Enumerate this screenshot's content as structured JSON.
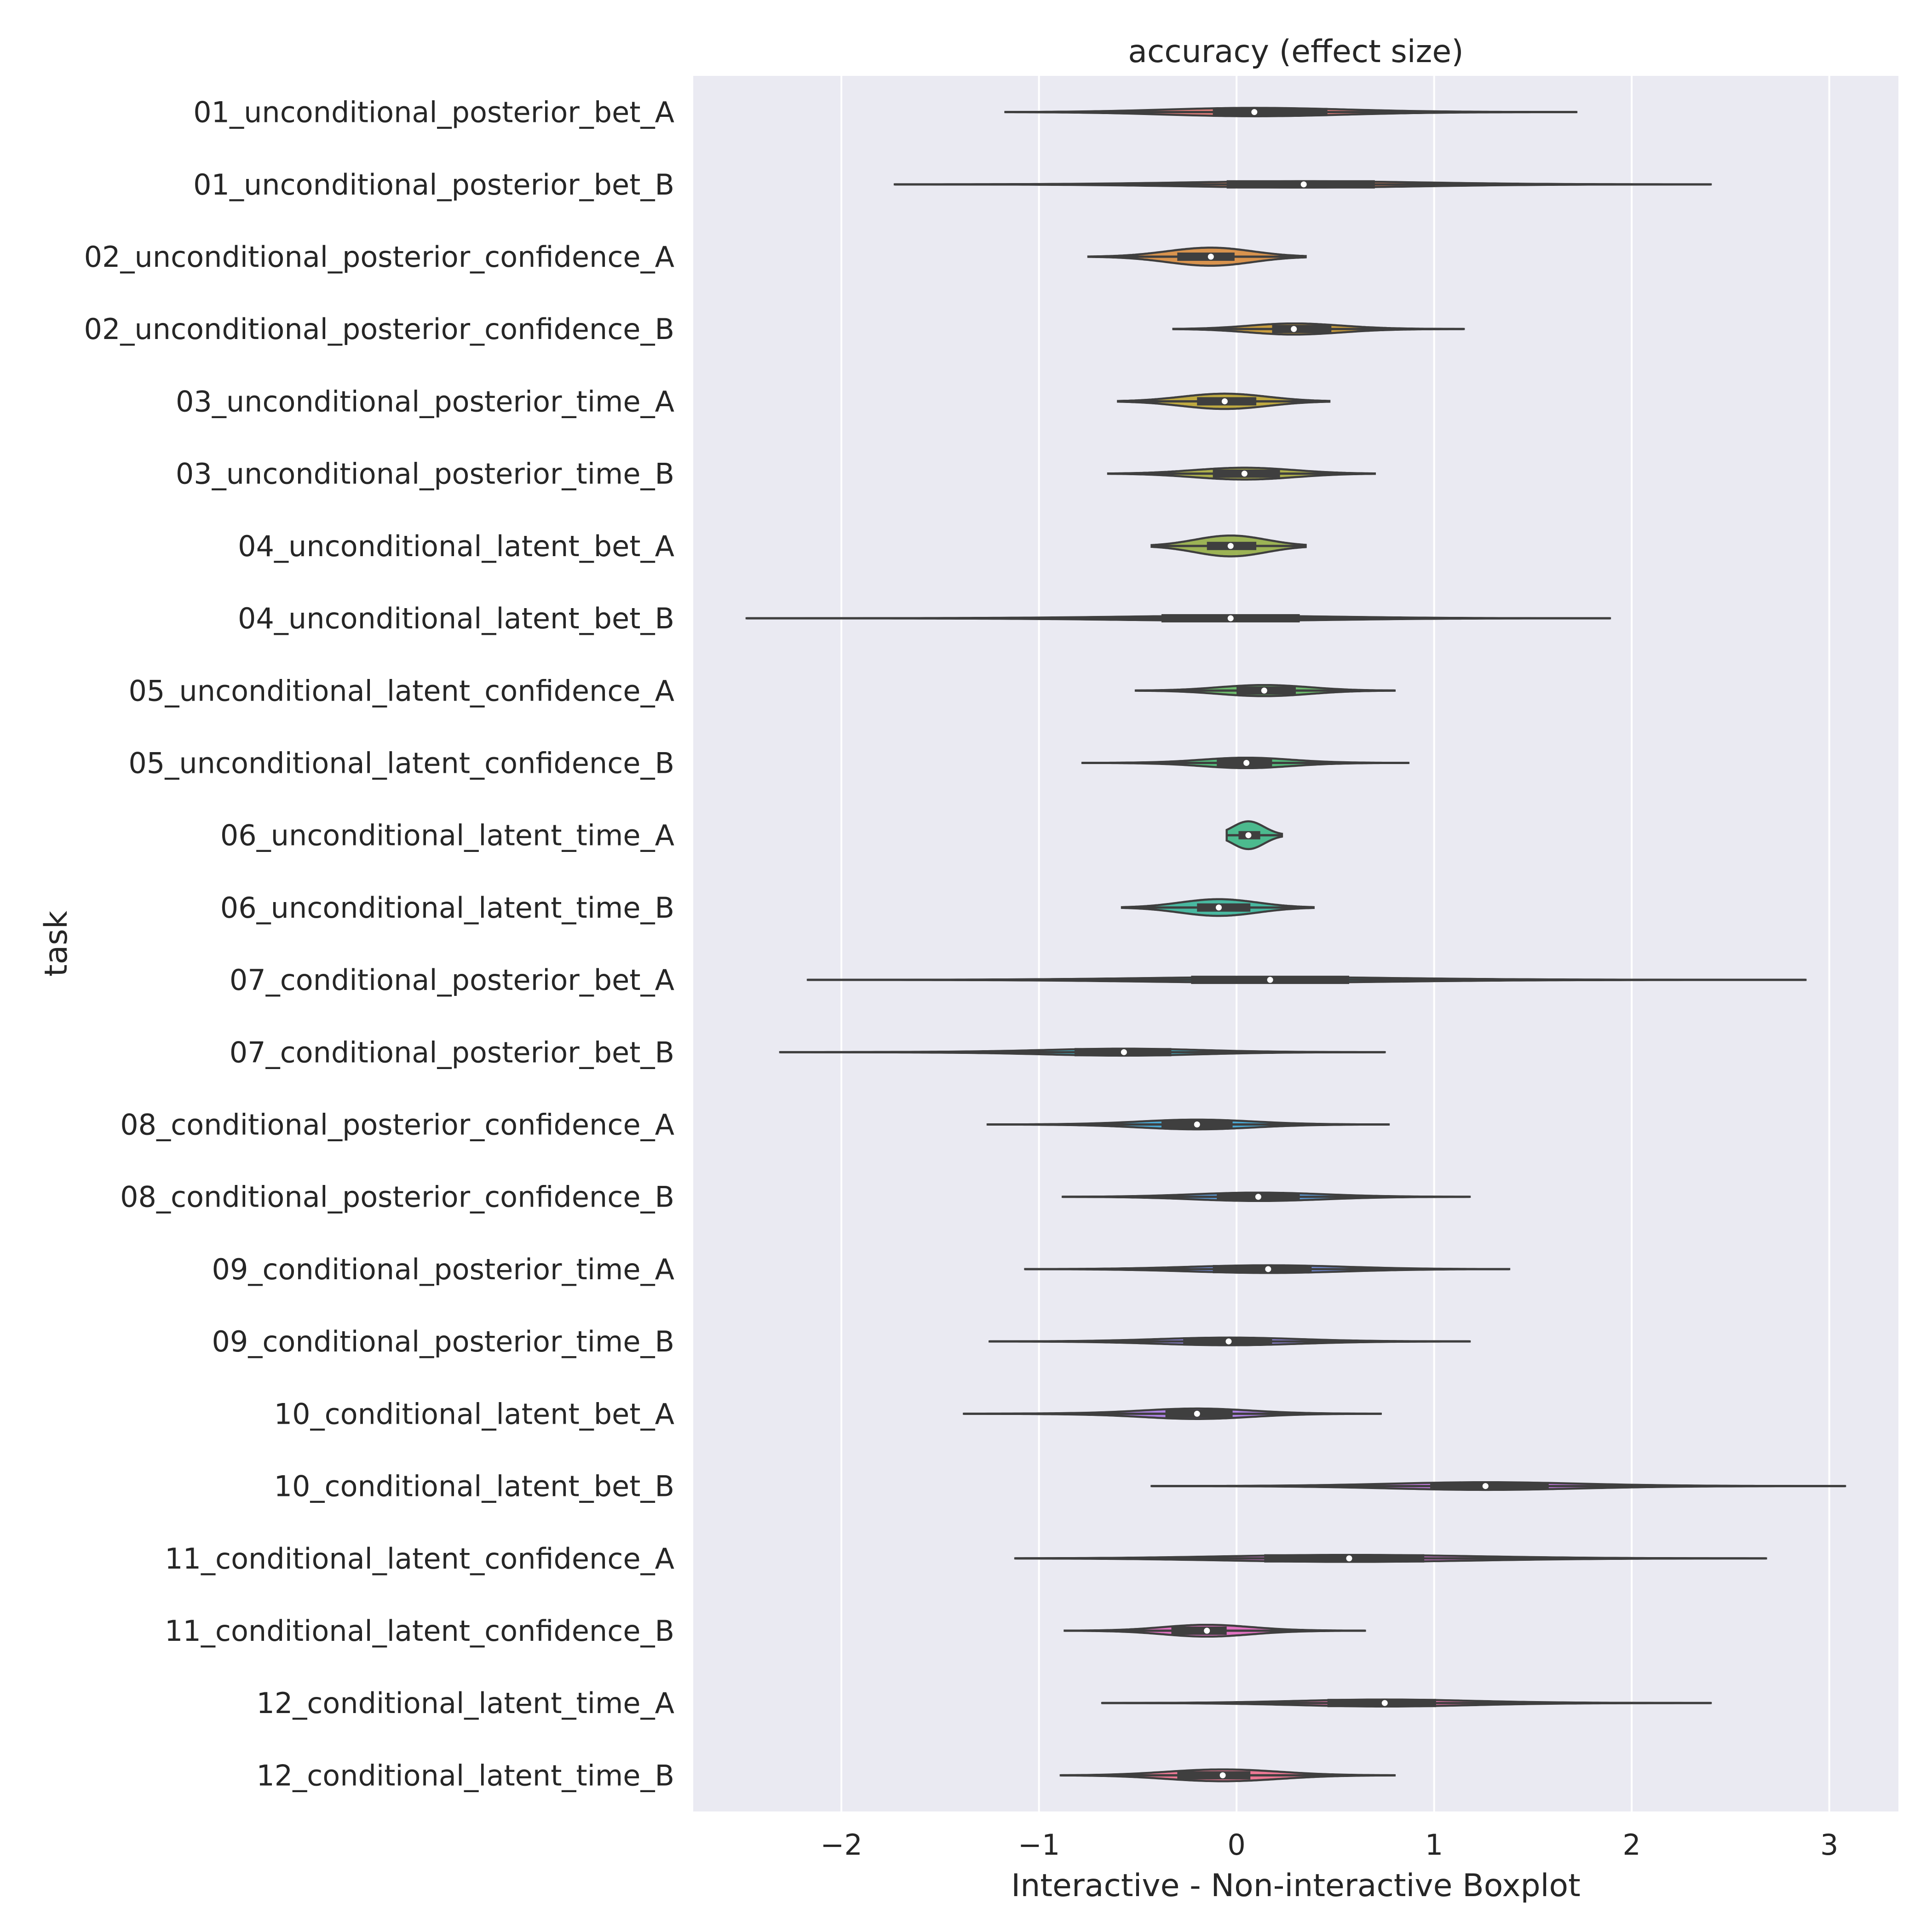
{
  "chart_data": {
    "type": "violin",
    "orientation": "horizontal",
    "title": "accuracy (effect size)",
    "xlabel": "Interactive - Non-interactive Boxplot",
    "ylabel": "task",
    "xlim": [
      -2.75,
      3.35
    ],
    "xticks": [
      -2,
      -1,
      0,
      1,
      2,
      3
    ],
    "xtick_labels": [
      "−2",
      "−1",
      "0",
      "1",
      "2",
      "3"
    ],
    "grid": true,
    "colors": {
      "background": "#EAEAF2",
      "grid": "#FFFFFF",
      "edge": "#3F3F3F"
    },
    "tasks": [
      {
        "name": "01_unconditional_posterior_bet_A",
        "min": -1.17,
        "q1": -0.12,
        "median": 0.09,
        "q3": 0.46,
        "max": 1.72,
        "halfwidth": 0.12,
        "color": "#E8766F"
      },
      {
        "name": "01_unconditional_posterior_bet_B",
        "min": -1.73,
        "q1": -0.05,
        "median": 0.34,
        "q3": 0.7,
        "max": 2.4,
        "halfwidth": 0.09,
        "color": "#E07C55"
      },
      {
        "name": "02_unconditional_posterior_confidence_A",
        "min": -0.75,
        "q1": -0.3,
        "median": -0.13,
        "q3": -0.01,
        "max": 0.35,
        "halfwidth": 0.26,
        "color": "#D68A3C"
      },
      {
        "name": "02_unconditional_posterior_confidence_B",
        "min": -0.32,
        "q1": 0.18,
        "median": 0.29,
        "q3": 0.48,
        "max": 1.15,
        "halfwidth": 0.16,
        "color": "#C7962B"
      },
      {
        "name": "03_unconditional_posterior_time_A",
        "min": -0.6,
        "q1": -0.2,
        "median": -0.06,
        "q3": 0.1,
        "max": 0.47,
        "halfwidth": 0.22,
        "color": "#B9A22E"
      },
      {
        "name": "03_unconditional_posterior_time_B",
        "min": -0.65,
        "q1": -0.12,
        "median": 0.04,
        "q3": 0.22,
        "max": 0.7,
        "halfwidth": 0.17,
        "color": "#A6A838"
      },
      {
        "name": "04_unconditional_latent_bet_A",
        "min": -0.43,
        "q1": -0.15,
        "median": -0.03,
        "q3": 0.1,
        "max": 0.35,
        "halfwidth": 0.3,
        "color": "#93AD44"
      },
      {
        "name": "04_unconditional_latent_bet_B",
        "min": -2.48,
        "q1": -0.38,
        "median": -0.03,
        "q3": 0.32,
        "max": 1.89,
        "halfwidth": 0.07,
        "color": "#7DB14F"
      },
      {
        "name": "05_unconditional_latent_confidence_A",
        "min": -0.51,
        "q1": 0.0,
        "median": 0.14,
        "q3": 0.3,
        "max": 0.8,
        "halfwidth": 0.16,
        "color": "#5FB55D"
      },
      {
        "name": "05_unconditional_latent_confidence_B",
        "min": -0.78,
        "q1": -0.1,
        "median": 0.05,
        "q3": 0.18,
        "max": 0.87,
        "halfwidth": 0.15,
        "color": "#45B56E"
      },
      {
        "name": "06_unconditional_latent_time_A",
        "min": -0.05,
        "q1": 0.01,
        "median": 0.06,
        "q3": 0.12,
        "max": 0.23,
        "halfwidth": 0.4,
        "color": "#3BB583"
      },
      {
        "name": "06_unconditional_latent_time_B",
        "min": -0.58,
        "q1": -0.2,
        "median": -0.09,
        "q3": 0.07,
        "max": 0.39,
        "halfwidth": 0.24,
        "color": "#37B297"
      },
      {
        "name": "07_conditional_posterior_bet_A",
        "min": -2.17,
        "q1": -0.23,
        "median": 0.17,
        "q3": 0.57,
        "max": 2.88,
        "halfwidth": 0.08,
        "color": "#36AFAB"
      },
      {
        "name": "07_conditional_posterior_bet_B",
        "min": -2.31,
        "q1": -0.82,
        "median": -0.57,
        "q3": -0.33,
        "max": 0.75,
        "halfwidth": 0.1,
        "color": "#38AABD"
      },
      {
        "name": "08_conditional_posterior_confidence_A",
        "min": -1.26,
        "q1": -0.38,
        "median": -0.2,
        "q3": -0.02,
        "max": 0.77,
        "halfwidth": 0.14,
        "color": "#3AA2CF"
      },
      {
        "name": "08_conditional_posterior_confidence_B",
        "min": -0.88,
        "q1": -0.1,
        "median": 0.11,
        "q3": 0.32,
        "max": 1.18,
        "halfwidth": 0.12,
        "color": "#4E97DC"
      },
      {
        "name": "09_conditional_posterior_time_A",
        "min": -1.07,
        "q1": -0.12,
        "median": 0.16,
        "q3": 0.38,
        "max": 1.38,
        "halfwidth": 0.11,
        "color": "#6E8BE3"
      },
      {
        "name": "09_conditional_posterior_time_B",
        "min": -1.25,
        "q1": -0.27,
        "median": -0.04,
        "q3": 0.18,
        "max": 1.18,
        "halfwidth": 0.11,
        "color": "#8D81E6"
      },
      {
        "name": "10_conditional_latent_bet_A",
        "min": -1.38,
        "q1": -0.36,
        "median": -0.2,
        "q3": -0.02,
        "max": 0.73,
        "halfwidth": 0.15,
        "color": "#A878E4"
      },
      {
        "name": "10_conditional_latent_bet_B",
        "min": -0.43,
        "q1": 0.98,
        "median": 1.26,
        "q3": 1.58,
        "max": 3.08,
        "halfwidth": 0.11,
        "color": "#BF6FDD"
      },
      {
        "name": "11_conditional_latent_confidence_A",
        "min": -1.12,
        "q1": 0.14,
        "median": 0.57,
        "q3": 0.95,
        "max": 2.68,
        "halfwidth": 0.1,
        "color": "#D269D0"
      },
      {
        "name": "11_conditional_latent_confidence_B",
        "min": -0.87,
        "q1": -0.33,
        "median": -0.15,
        "q3": -0.05,
        "max": 0.65,
        "halfwidth": 0.17,
        "color": "#E065BC"
      },
      {
        "name": "12_conditional_latent_time_A",
        "min": -0.68,
        "q1": 0.46,
        "median": 0.75,
        "q3": 1.01,
        "max": 2.4,
        "halfwidth": 0.1,
        "color": "#E868A3"
      },
      {
        "name": "12_conditional_latent_time_B",
        "min": -0.89,
        "q1": -0.3,
        "median": -0.07,
        "q3": 0.07,
        "max": 0.8,
        "halfwidth": 0.17,
        "color": "#EC6C89"
      }
    ]
  }
}
